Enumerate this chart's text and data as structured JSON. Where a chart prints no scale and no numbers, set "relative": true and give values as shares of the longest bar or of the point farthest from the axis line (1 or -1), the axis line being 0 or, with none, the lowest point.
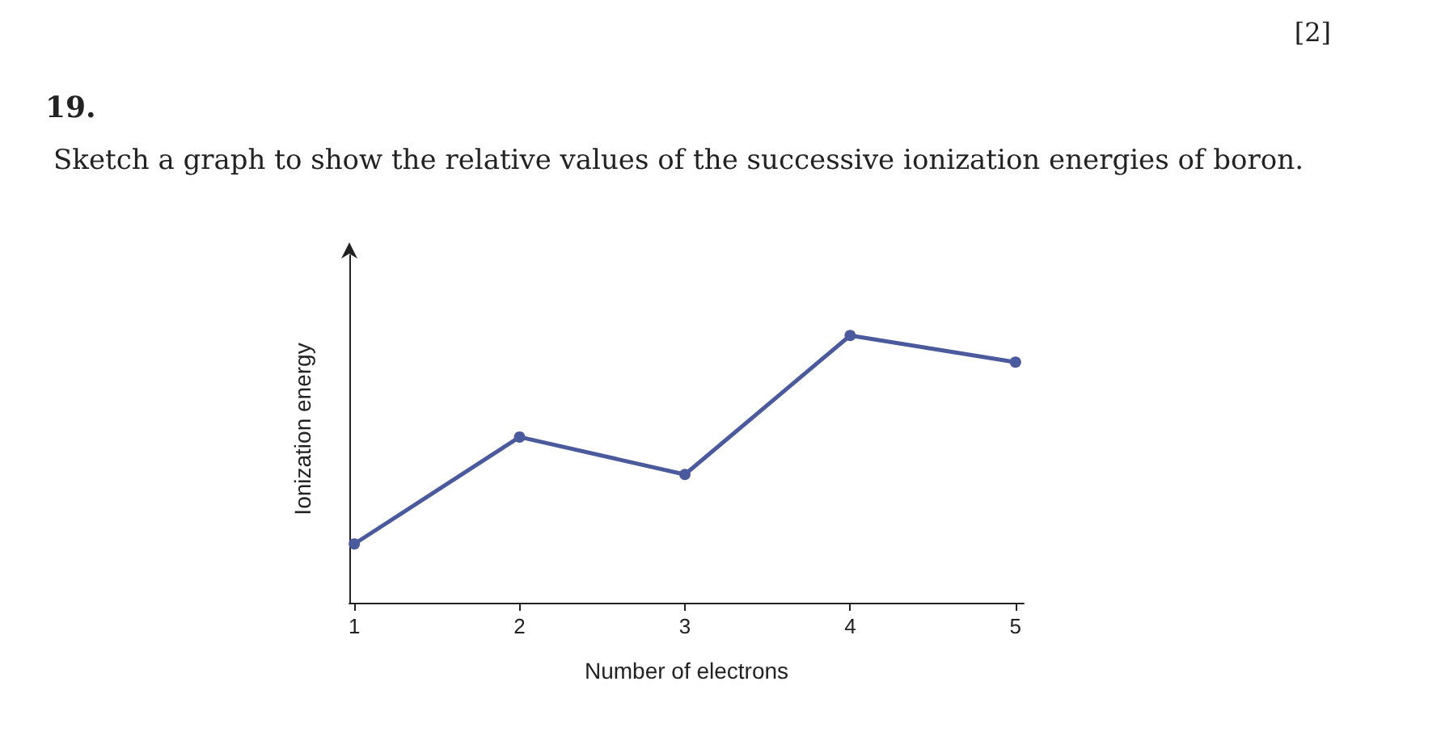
{
  "chart_data": {
    "type": "line",
    "title": "Sketch a graph to show the relative values of the successive ionization energies of boron.",
    "xlabel": "Number of electrons",
    "ylabel": "Ionization energy",
    "annotations": [
      "19.",
      "[2]"
    ],
    "x": [
      1,
      2,
      3,
      4,
      5
    ],
    "relative": true,
    "series": [
      {
        "color": "#4a5a9c",
        "values": [
          0.22,
          0.62,
          0.48,
          1.0,
          0.9
        ]
      }
    ],
    "xlim": [
      0.97,
      5.05
    ],
    "xticks": [
      1,
      2,
      3,
      4,
      5
    ],
    "marker": "circle",
    "line_style": "solid",
    "grid": false
  }
}
